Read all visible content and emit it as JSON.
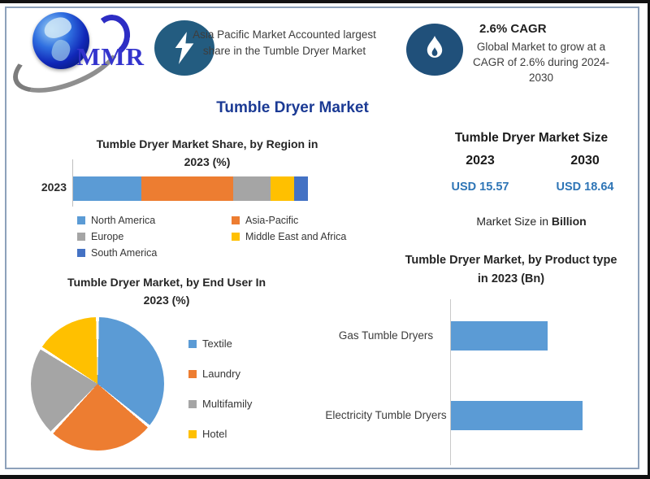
{
  "colors": {
    "bar_blue": "#5b9bd5",
    "accent_navy_title": "#1b3a94",
    "usd_value_blue": "#2e75b6",
    "frame_border": "#8da1ba",
    "lightning_circle": "#235c80",
    "flame_circle": "#20507a"
  },
  "header": {
    "logo_text": "MMR",
    "highlight_card": {
      "icon": "lightning-bolt",
      "text": "Asia Pacific Market Accounted largest share in the Tumble Dryer Market"
    },
    "cagr_card": {
      "icon": "flame",
      "title": "2.6% CAGR",
      "text": "Global Market to grow at a CAGR of 2.6% during 2024-2030"
    }
  },
  "page_title": "Tumble Dryer Market",
  "market_size_panel": {
    "title": "Tumble Dryer Market Size",
    "columns": [
      {
        "year": "2023",
        "value": "USD 15.57"
      },
      {
        "year": "2030",
        "value": "USD 18.64"
      }
    ],
    "footnote_prefix": "Market Size in ",
    "footnote_bold": "Billion"
  },
  "chart_data": [
    {
      "id": "region_share",
      "type": "bar",
      "variant": "stacked-horizontal",
      "title": "Tumble Dryer Market Share, by Region in 2023 (%)",
      "categories": [
        "2023"
      ],
      "series": [
        {
          "name": "North America",
          "color": "#5b9bd5",
          "values": [
            29
          ]
        },
        {
          "name": "Asia-Pacific",
          "color": "#ed7d31",
          "values": [
            39
          ]
        },
        {
          "name": "Europe",
          "color": "#a5a5a5",
          "values": [
            16
          ]
        },
        {
          "name": "Middle East and Africa",
          "color": "#ffc000",
          "values": [
            10
          ]
        },
        {
          "name": "South America",
          "color": "#4472c4",
          "values": [
            6
          ]
        }
      ],
      "xlim": [
        0,
        100
      ],
      "grid": false,
      "legend_position": "bottom"
    },
    {
      "id": "end_user",
      "type": "pie",
      "title": "Tumble Dryer Market, by End User In 2023 (%)",
      "labels": [
        "Textile",
        "Laundry",
        "Multifamily",
        "Hotel"
      ],
      "values": [
        36,
        26,
        22,
        16
      ],
      "colors": [
        "#5b9bd5",
        "#ed7d31",
        "#a5a5a5",
        "#ffc000"
      ],
      "legend_position": "right"
    },
    {
      "id": "product_type",
      "type": "bar",
      "variant": "horizontal",
      "title": "Tumble Dryer Market, by Product type in 2023 (Bn)",
      "categories": [
        "Gas Tumble Dryers",
        "Electricity Tumble Dryers"
      ],
      "values": [
        6.6,
        9.0
      ],
      "color": "#5b9bd5",
      "xlabel": "",
      "ylabel": "",
      "xlim": [
        0,
        12.9
      ],
      "grid": false,
      "legend_position": "none"
    }
  ]
}
